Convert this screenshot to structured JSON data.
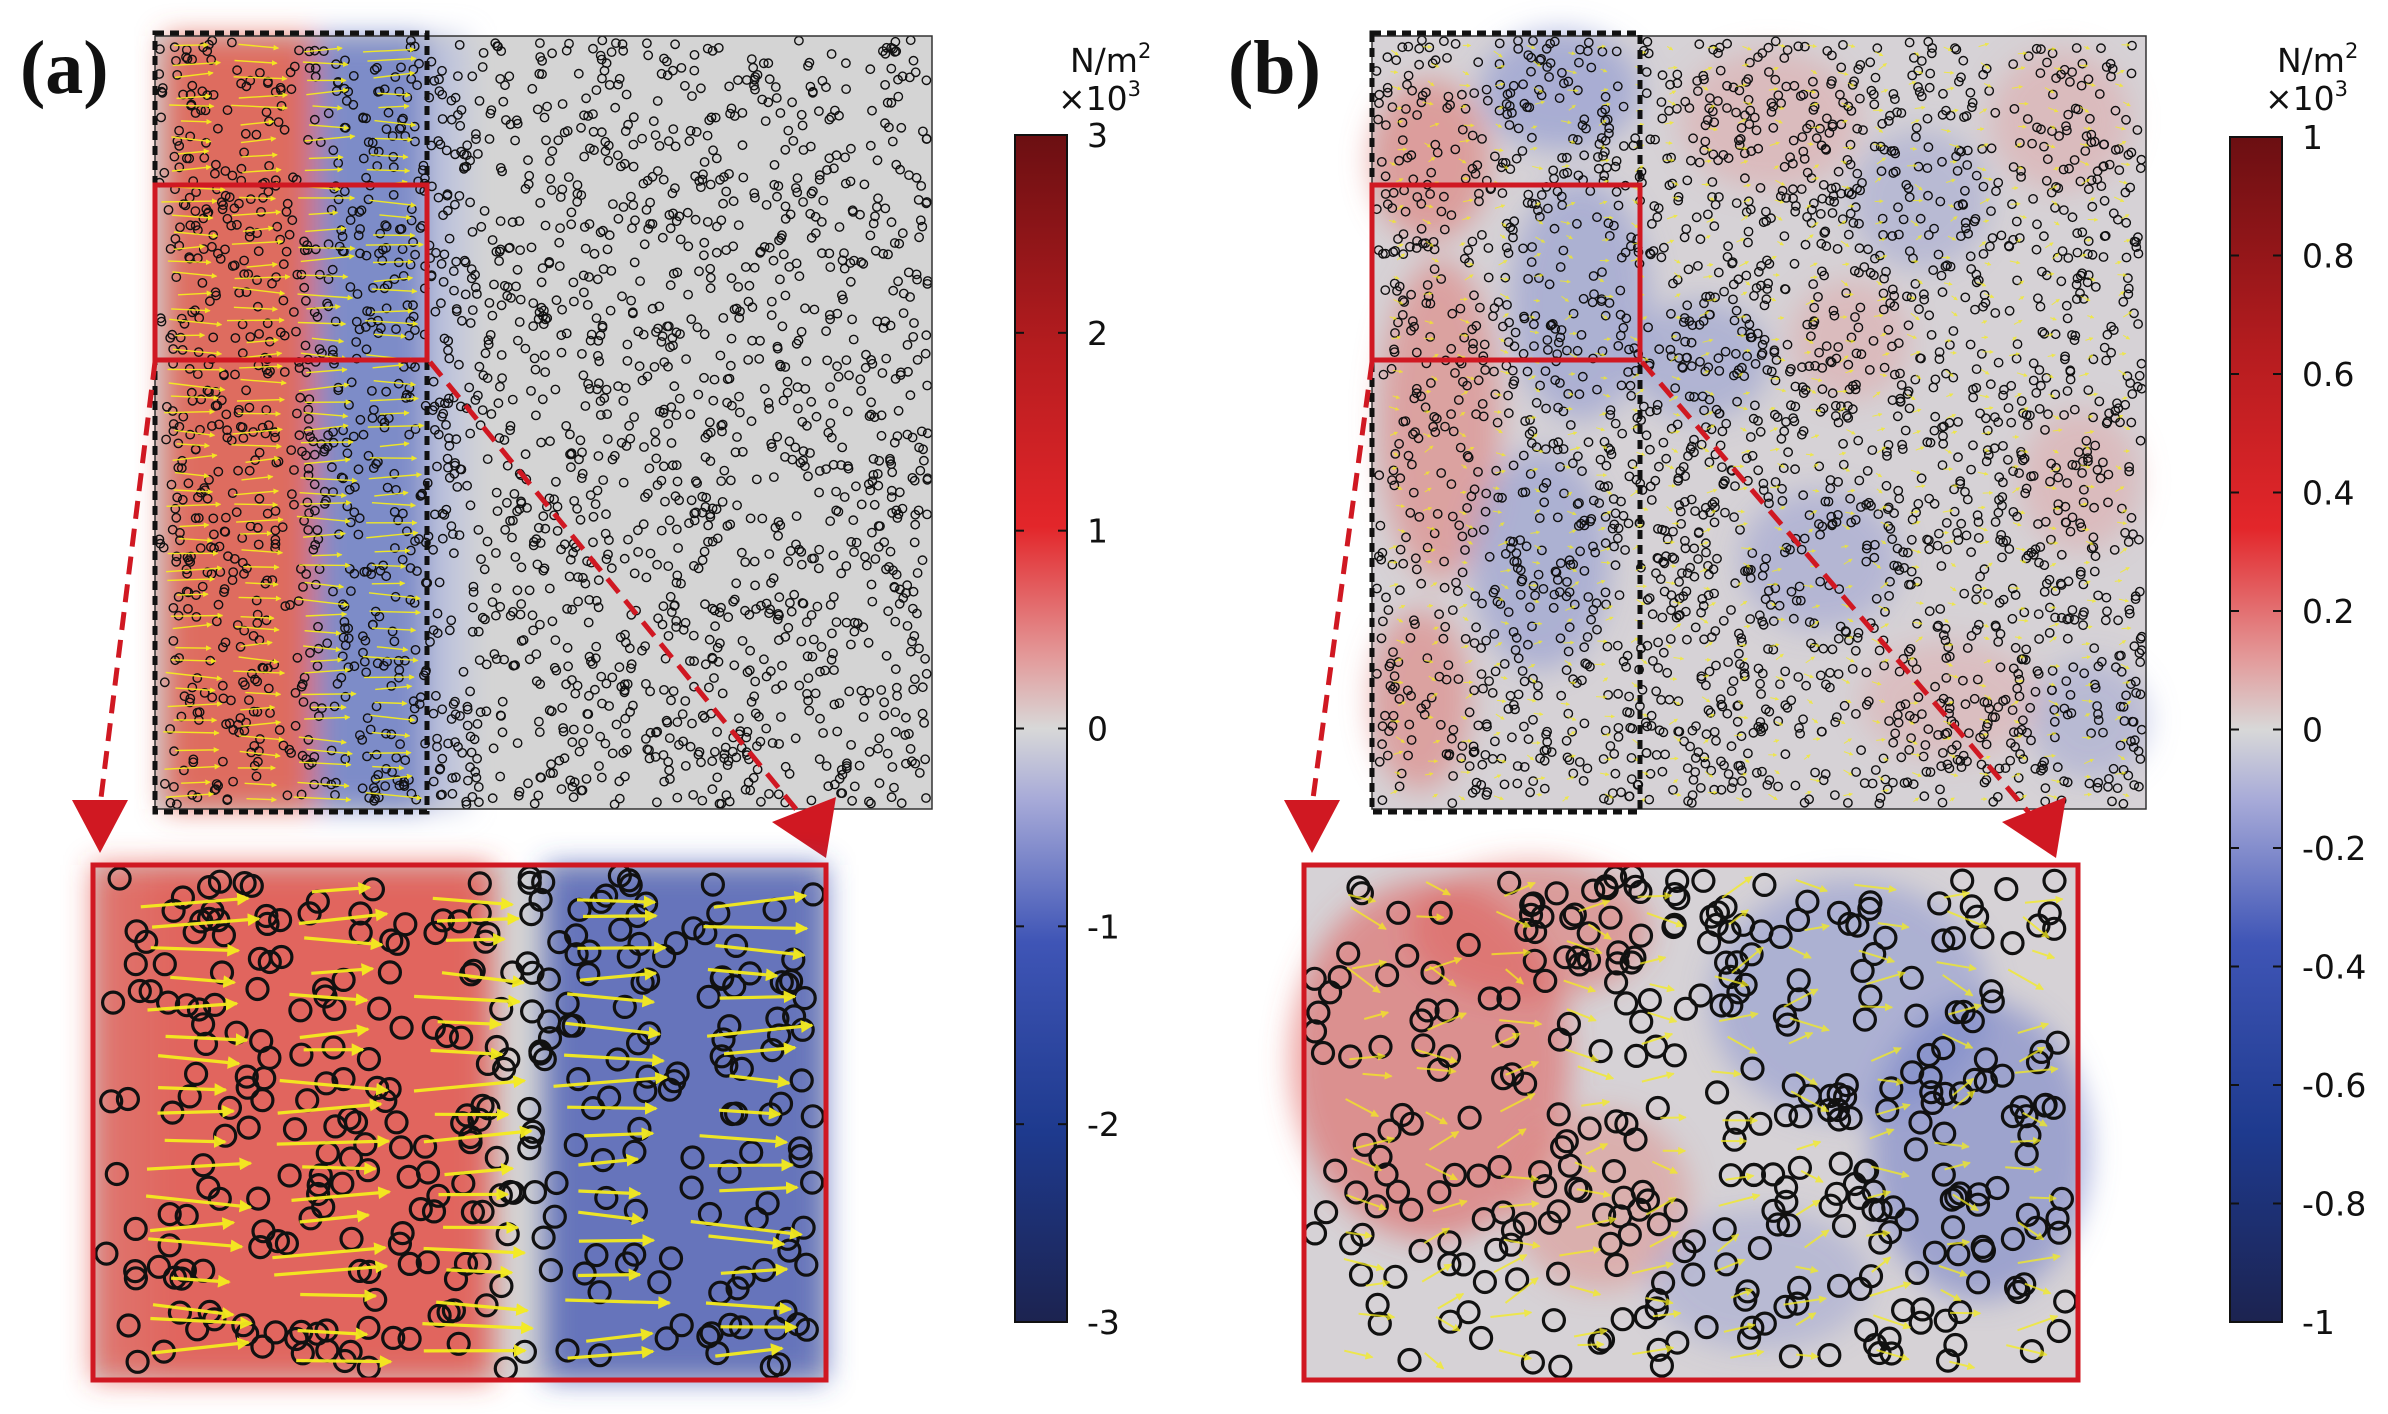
{
  "panels": [
    {
      "id": "a",
      "label": "(a)",
      "colorbar": {
        "unit_line1": "N/m",
        "unit_sup1": "2",
        "unit_line2": "×10",
        "unit_sup2": "3",
        "ticks": [
          "3",
          "2",
          "1",
          "0",
          "-1",
          "-2",
          "-3"
        ],
        "tick_values": [
          3,
          2,
          1,
          0,
          -1,
          -2,
          -3
        ],
        "range": [
          -3,
          3
        ]
      },
      "field_pattern": "stripes",
      "arrow_strength": 1.0
    },
    {
      "id": "b",
      "label": "(b)",
      "colorbar": {
        "unit_line1": "N/m",
        "unit_sup1": "2",
        "unit_line2": "×10",
        "unit_sup2": "3",
        "ticks": [
          "1",
          "0.8",
          "0.6",
          "0.4",
          "0.2",
          "0",
          "-0.2",
          "-0.4",
          "-0.6",
          "-0.8",
          "-1"
        ],
        "tick_values": [
          1,
          0.8,
          0.6,
          0.4,
          0.2,
          0,
          -0.2,
          -0.4,
          -0.6,
          -0.8,
          -1
        ],
        "range": [
          -1,
          1
        ]
      },
      "field_pattern": "patchy",
      "arrow_strength": 0.45
    }
  ],
  "colors": {
    "field_positive": "#e01e1e",
    "field_neutral": "#d4d4d4",
    "field_negative": "#233a9a",
    "colorbar_top": "#6b0f12",
    "colorbar_bottom": "#1c2350",
    "highlight_box": "#d01822",
    "particle_stroke": "#111111",
    "arrow": "#f5ec1e"
  }
}
